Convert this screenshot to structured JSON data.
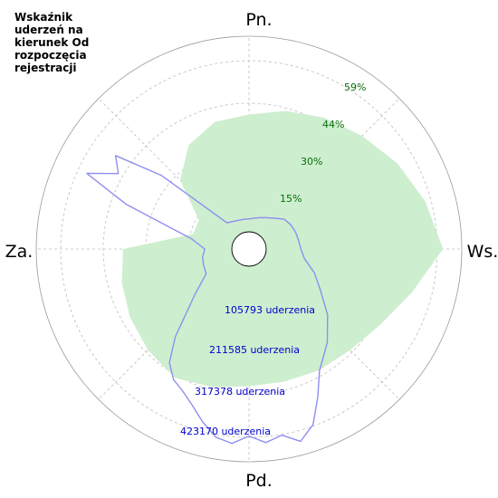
{
  "chart_data": {
    "type": "polar",
    "title": "Wskaźnik uderzeń na kierunek Od rozpoczęcia rejestracji",
    "directions": {
      "n": "Pn.",
      "e": "Ws.",
      "s": "Pd.",
      "w": "Za."
    },
    "percent_ticks": [
      {
        "value": 15,
        "label": "15%"
      },
      {
        "value": 30,
        "label": "30%"
      },
      {
        "value": 44,
        "label": "44%"
      },
      {
        "value": 59,
        "label": "59%"
      }
    ],
    "count_ticks": [
      {
        "value": 105793,
        "label": "105793 uderzenia"
      },
      {
        "value": 211585,
        "label": "211585 uderzenia"
      },
      {
        "value": 317378,
        "label": "317378 uderzenia"
      },
      {
        "value": 423170,
        "label": "423170 uderzenia"
      }
    ],
    "percent_series": {
      "angles_deg": [
        0,
        15,
        30,
        45,
        60,
        75,
        90,
        105,
        120,
        135,
        150,
        165,
        180,
        195,
        210,
        225,
        240,
        255,
        270,
        285,
        300,
        315,
        330,
        345
      ],
      "values": [
        41,
        44,
        47,
        50,
        54,
        58,
        62,
        53,
        47,
        44,
        43,
        42,
        42,
        44,
        46,
        44,
        42,
        40,
        38,
        14,
        14,
        28,
        36,
        40
      ],
      "color": "#cdeecf"
    },
    "count_series": {
      "angles_deg": [
        0,
        10,
        20,
        30,
        40,
        50,
        60,
        70,
        80,
        90,
        100,
        110,
        120,
        130,
        140,
        150,
        155,
        160,
        165,
        170,
        175,
        180,
        185,
        190,
        195,
        200,
        205,
        210,
        215,
        220,
        230,
        240,
        250,
        260,
        270,
        280,
        290,
        295,
        300,
        305,
        310,
        320,
        330,
        340,
        350
      ],
      "values": [
        30000,
        33000,
        38000,
        45000,
        55000,
        70000,
        75000,
        78000,
        80000,
        84000,
        95000,
        128000,
        160000,
        210000,
        258000,
        305000,
        360000,
        420000,
        450000,
        425000,
        438000,
        420000,
        440000,
        430000,
        400000,
        368000,
        345000,
        330000,
        300000,
        240000,
        130000,
        78000,
        75000,
        72000,
        65000,
        100000,
        280000,
        400000,
        330000,
        360000,
        240000,
        40000,
        34000,
        31000,
        30000
      ],
      "color": "#8f8fef"
    }
  }
}
